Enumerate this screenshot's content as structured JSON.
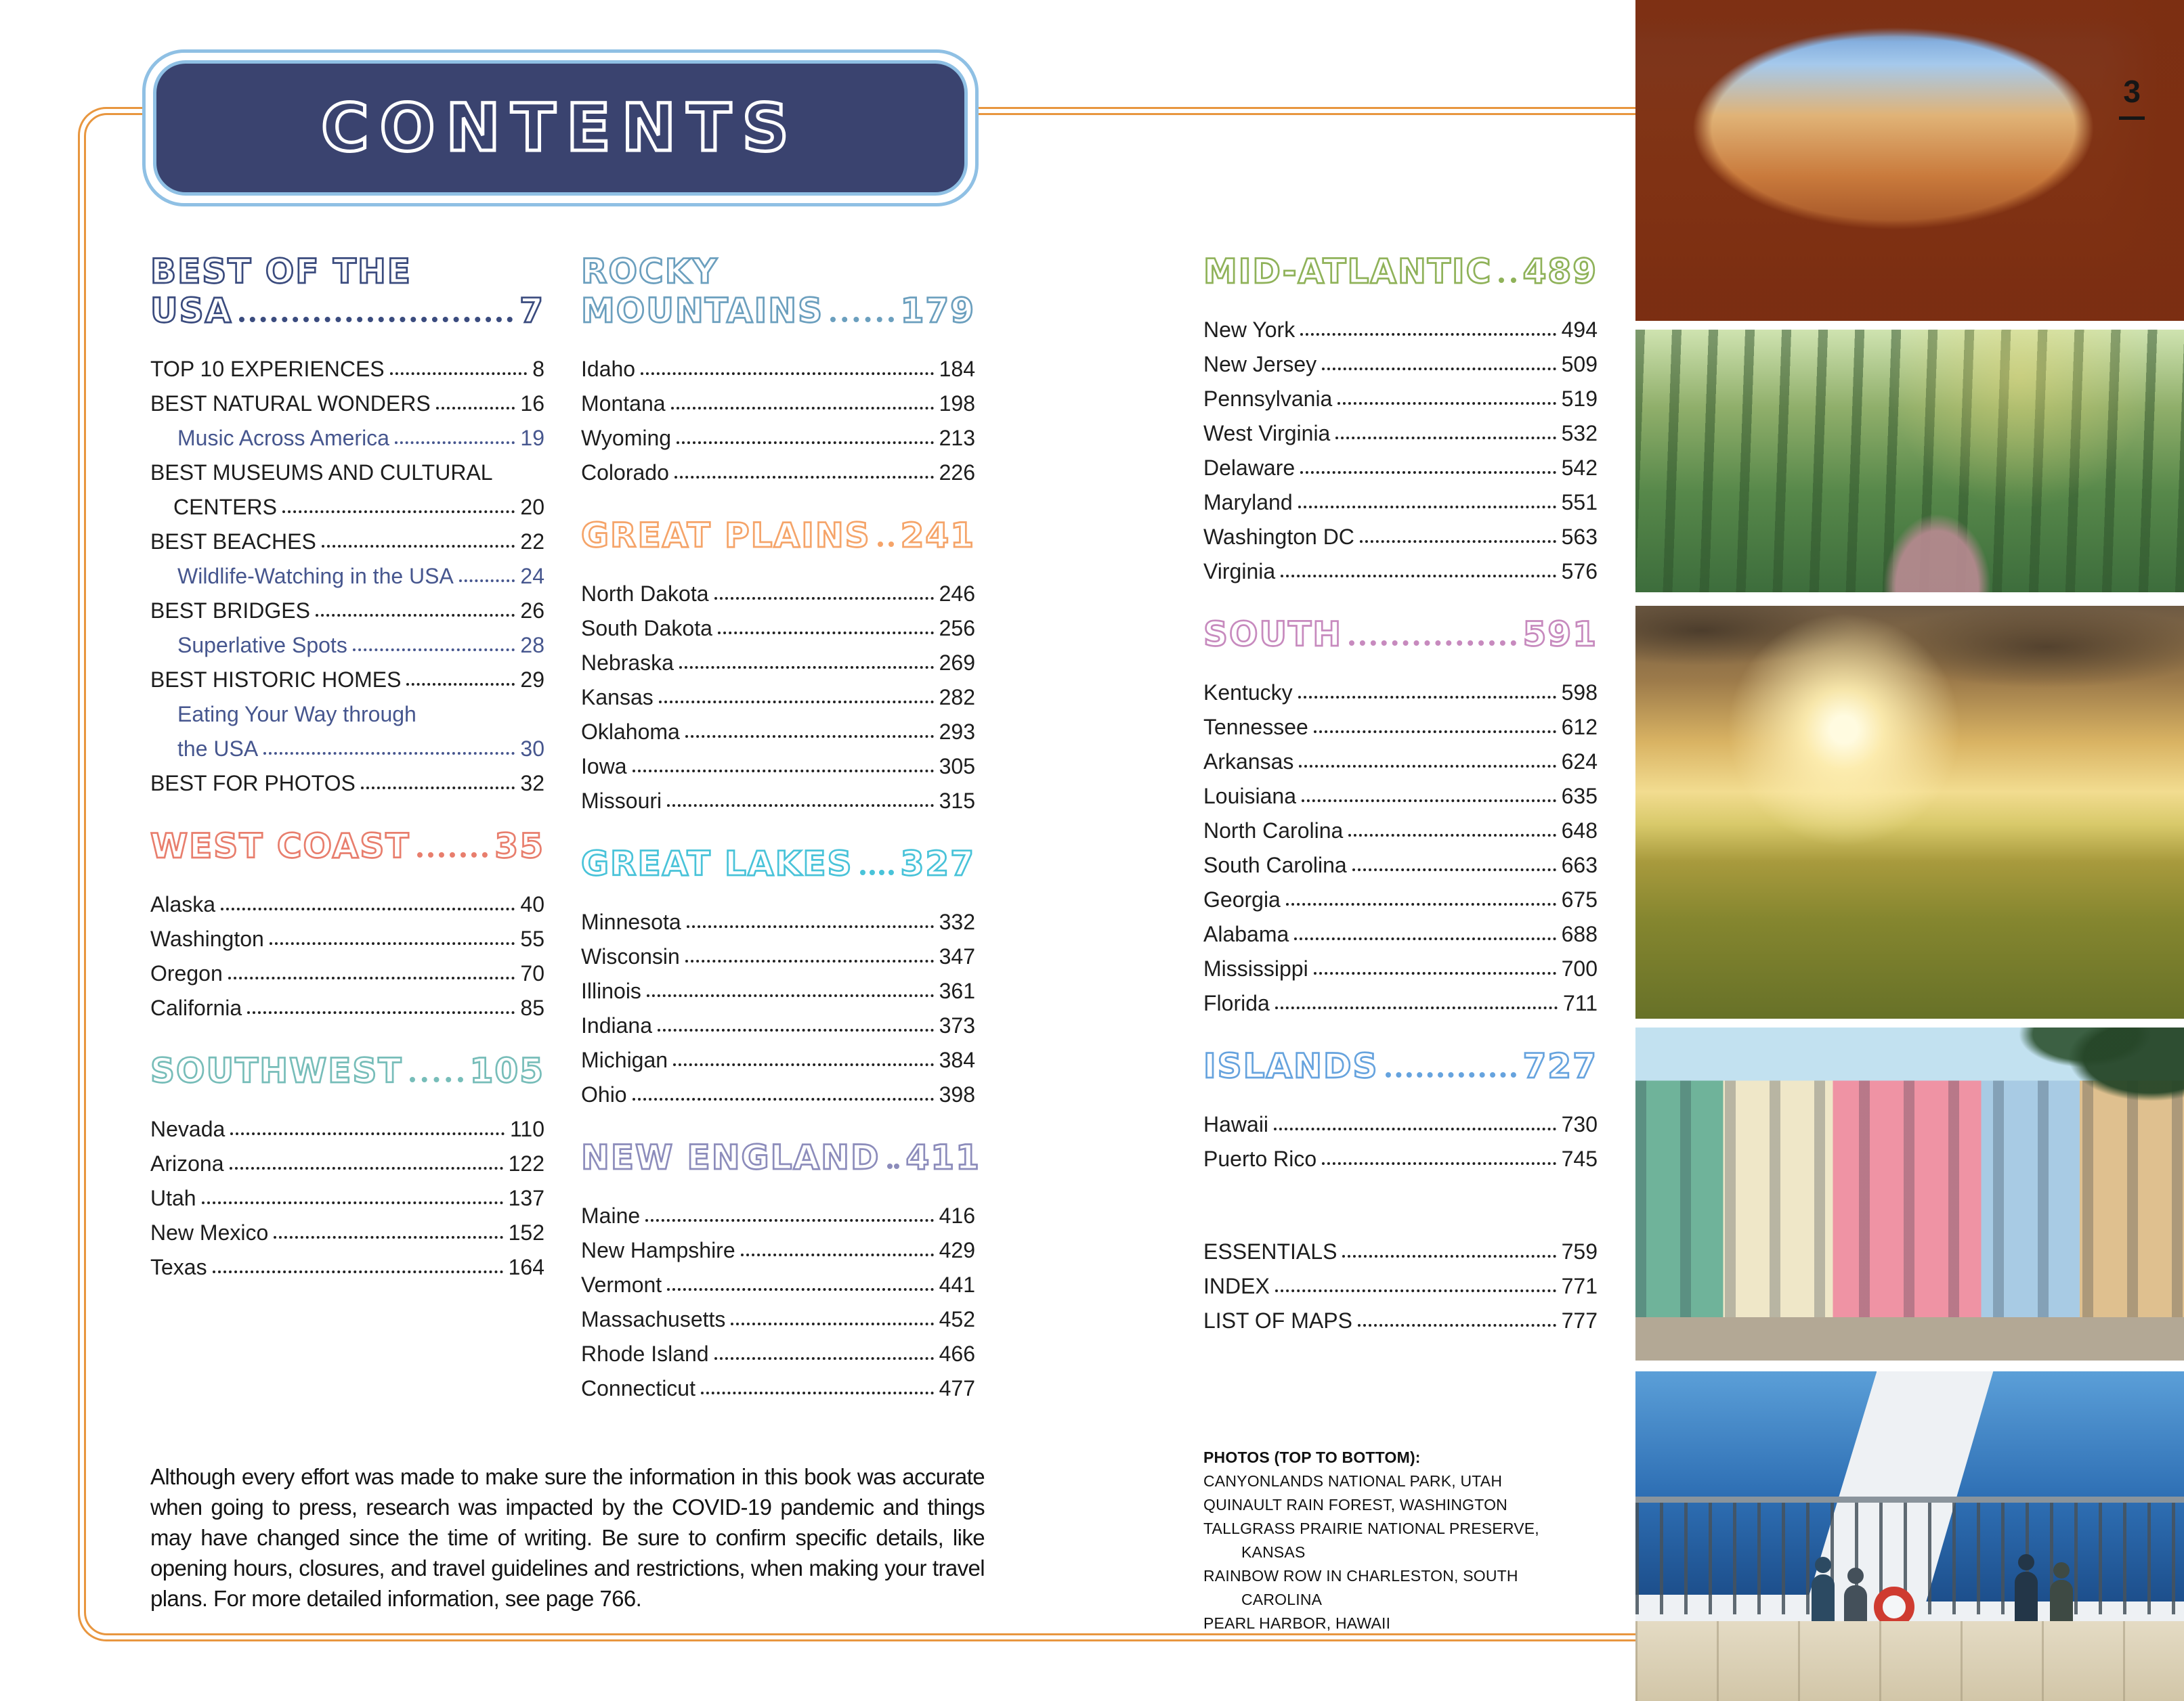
{
  "theme": {
    "navy": "#3A436F",
    "box_border": "#8FC0E4",
    "frame_orange": "#E8963F",
    "sub_blue": "#46568E",
    "ink": "#1d1d1d"
  },
  "page_number": "3",
  "contents_box": {
    "title": "CONTENTS"
  },
  "columns": [
    {
      "sections": [
        {
          "title_lines": [
            "BEST OF THE",
            "USA"
          ],
          "page": "7",
          "color": "#3A4B7E",
          "items": [
            {
              "label": "TOP 10 EXPERIENCES",
              "page": "8"
            },
            {
              "label": "BEST NATURAL WONDERS",
              "page": "16"
            },
            {
              "label": "Music Across America",
              "page": "19",
              "sub": true
            },
            {
              "pre": "BEST MUSEUMS AND CULTURAL",
              "label": "CENTERS",
              "page": "20",
              "cont": true
            },
            {
              "label": "BEST BEACHES",
              "page": "22"
            },
            {
              "label": "Wildlife-Watching in the USA",
              "page": "24",
              "sub": true
            },
            {
              "label": "BEST BRIDGES",
              "page": "26"
            },
            {
              "label": "Superlative Spots",
              "page": "28",
              "sub": true
            },
            {
              "label": "BEST HISTORIC HOMES",
              "page": "29"
            },
            {
              "pre": "Eating Your Way through",
              "label": "the USA",
              "page": "30",
              "sub": true,
              "cont": true
            },
            {
              "label": "BEST FOR PHOTOS",
              "page": "32"
            }
          ]
        },
        {
          "title_lines": [
            "WEST COAST"
          ],
          "page": "35",
          "color": "#E87E6D",
          "items": [
            {
              "label": "Alaska",
              "page": "40"
            },
            {
              "label": "Washington",
              "page": "55"
            },
            {
              "label": "Oregon",
              "page": "70"
            },
            {
              "label": "California",
              "page": "85"
            }
          ]
        },
        {
          "title_lines": [
            "SOUTHWEST"
          ],
          "page": "105",
          "color": "#77BDB9",
          "items": [
            {
              "label": "Nevada",
              "page": "110"
            },
            {
              "label": "Arizona",
              "page": "122"
            },
            {
              "label": "Utah",
              "page": "137"
            },
            {
              "label": "New Mexico",
              "page": "152"
            },
            {
              "label": "Texas",
              "page": "164"
            }
          ]
        }
      ]
    },
    {
      "sections": [
        {
          "title_lines": [
            "ROCKY",
            "MOUNTAINS"
          ],
          "page": "179",
          "color": "#6B9FBE",
          "items": [
            {
              "label": "Idaho",
              "page": "184"
            },
            {
              "label": "Montana",
              "page": "198"
            },
            {
              "label": "Wyoming",
              "page": "213"
            },
            {
              "label": "Colorado",
              "page": "226"
            }
          ]
        },
        {
          "title_lines": [
            "GREAT PLAINS"
          ],
          "page": "241",
          "color": "#F5A469",
          "items": [
            {
              "label": "North Dakota",
              "page": "246"
            },
            {
              "label": "South Dakota",
              "page": "256"
            },
            {
              "label": "Nebraska",
              "page": "269"
            },
            {
              "label": "Kansas",
              "page": "282"
            },
            {
              "label": "Oklahoma",
              "page": "293"
            },
            {
              "label": "Iowa",
              "page": "305"
            },
            {
              "label": "Missouri",
              "page": "315"
            }
          ]
        },
        {
          "title_lines": [
            "GREAT LAKES"
          ],
          "page": "327",
          "color": "#49C3D9",
          "items": [
            {
              "label": "Minnesota",
              "page": "332"
            },
            {
              "label": "Wisconsin",
              "page": "347"
            },
            {
              "label": "Illinois",
              "page": "361"
            },
            {
              "label": "Indiana",
              "page": "373"
            },
            {
              "label": "Michigan",
              "page": "384"
            },
            {
              "label": "Ohio",
              "page": "398"
            }
          ]
        },
        {
          "title_lines": [
            "NEW ENGLAND"
          ],
          "page": "411",
          "color": "#8C8CBB",
          "items": [
            {
              "label": "Maine",
              "page": "416"
            },
            {
              "label": "New Hampshire",
              "page": "429"
            },
            {
              "label": "Vermont",
              "page": "441"
            },
            {
              "label": "Massachusetts",
              "page": "452"
            },
            {
              "label": "Rhode Island",
              "page": "466"
            },
            {
              "label": "Connecticut",
              "page": "477"
            }
          ]
        }
      ]
    },
    {
      "sections": [
        {
          "title_lines": [
            "MID-ATLANTIC"
          ],
          "page": "489",
          "color": "#8FB259",
          "items": [
            {
              "label": "New York",
              "page": "494"
            },
            {
              "label": "New Jersey",
              "page": "509"
            },
            {
              "label": "Pennsylvania",
              "page": "519"
            },
            {
              "label": "West Virginia",
              "page": "532"
            },
            {
              "label": "Delaware",
              "page": "542"
            },
            {
              "label": "Maryland",
              "page": "551"
            },
            {
              "label": "Washington DC",
              "page": "563"
            },
            {
              "label": "Virginia",
              "page": "576"
            }
          ]
        },
        {
          "title_lines": [
            "SOUTH"
          ],
          "page": "591",
          "color": "#C78ABE",
          "items": [
            {
              "label": "Kentucky",
              "page": "598"
            },
            {
              "label": "Tennessee",
              "page": "612"
            },
            {
              "label": "Arkansas",
              "page": "624"
            },
            {
              "label": "Louisiana",
              "page": "635"
            },
            {
              "label": "North Carolina",
              "page": "648"
            },
            {
              "label": "South Carolina",
              "page": "663"
            },
            {
              "label": "Georgia",
              "page": "675"
            },
            {
              "label": "Alabama",
              "page": "688"
            },
            {
              "label": "Mississippi",
              "page": "700"
            },
            {
              "label": "Florida",
              "page": "711"
            }
          ]
        },
        {
          "title_lines": [
            "ISLANDS"
          ],
          "page": "727",
          "color": "#66A3DE",
          "items": [
            {
              "label": "Hawaii",
              "page": "730"
            },
            {
              "label": "Puerto Rico",
              "page": "745"
            }
          ]
        },
        {
          "gap": true,
          "items": [
            {
              "label": "ESSENTIALS",
              "page": "759"
            },
            {
              "label": "INDEX",
              "page": "771"
            },
            {
              "label": "LIST OF MAPS",
              "page": "777"
            }
          ]
        }
      ]
    }
  ],
  "disclaimer": "Although every effort was made to make sure the information in this book was accurate when going to press, research was impacted by the COVID-19 pandemic and things may have changed since the time of writing. Be sure to confirm specific details, like opening hours, closures, and travel guidelines and restrictions, when making your travel plans. For more detailed information, see page 766.",
  "credits": {
    "heading": "PHOTOS (TOP TO BOTTOM):",
    "lines": [
      {
        "text": "CANYONLANDS NATIONAL PARK, UTAH",
        "indent": false
      },
      {
        "text": "QUINAULT RAIN FOREST, WASHINGTON",
        "indent": false
      },
      {
        "text": "TALLGRASS PRAIRIE NATIONAL PRESERVE,",
        "indent": false
      },
      {
        "text": "KANSAS",
        "indent": true
      },
      {
        "text": "RAINBOW ROW IN CHARLESTON, SOUTH",
        "indent": false
      },
      {
        "text": "CAROLINA",
        "indent": true
      },
      {
        "text": "PEARL HARBOR, HAWAII",
        "indent": false
      }
    ]
  }
}
